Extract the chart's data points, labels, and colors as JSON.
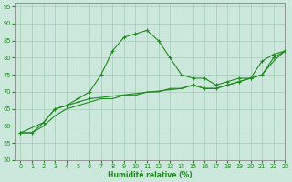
{
  "xlabel": "Humidité relative (%)",
  "background_color": "#cce8dd",
  "grid_color": "#aacfbb",
  "line_color": "#228822",
  "tick_color": "#228822",
  "xlim": [
    -0.5,
    23
  ],
  "ylim": [
    50,
    96
  ],
  "xticks": [
    0,
    1,
    2,
    3,
    4,
    5,
    6,
    7,
    8,
    9,
    10,
    11,
    12,
    13,
    14,
    15,
    16,
    17,
    18,
    19,
    20,
    21,
    22,
    23
  ],
  "yticks": [
    50,
    55,
    60,
    65,
    70,
    75,
    80,
    85,
    90,
    95
  ],
  "series1_x": [
    0,
    1,
    2,
    3,
    4,
    5,
    6,
    7,
    8,
    9,
    10,
    11,
    12,
    13,
    14,
    15,
    16,
    17,
    18,
    19,
    20,
    21,
    22,
    23
  ],
  "series1_y": [
    58,
    58,
    61,
    65,
    66,
    68,
    70,
    75,
    82,
    86,
    87,
    88,
    85,
    80,
    75,
    74,
    74,
    72,
    73,
    74,
    74,
    79,
    81,
    82
  ],
  "series2_x": [
    0,
    2,
    3,
    4,
    5,
    6,
    14,
    15,
    16,
    17,
    18,
    19,
    20,
    21,
    22,
    23
  ],
  "series2_y": [
    58,
    61,
    65,
    66,
    67,
    68,
    71,
    72,
    71,
    71,
    72,
    73,
    74,
    75,
    80,
    82
  ],
  "series3_x": [
    0,
    1,
    2,
    3,
    4,
    5,
    6,
    7,
    8,
    9,
    10,
    11,
    12,
    13,
    14,
    15,
    16,
    17,
    18,
    19,
    20,
    21,
    22,
    23
  ],
  "series3_y": [
    58,
    58,
    60,
    63,
    65,
    66,
    67,
    68,
    68,
    69,
    69,
    70,
    70,
    71,
    71,
    72,
    71,
    71,
    72,
    73,
    74,
    75,
    79,
    82
  ]
}
